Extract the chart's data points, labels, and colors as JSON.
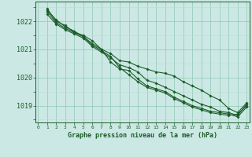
{
  "title": "Graphe pression niveau de la mer (hPa)",
  "bg_color": "#cce8e4",
  "line_color": "#1a5c28",
  "grid_color_major": "#99ccbb",
  "grid_color_minor": "#bbddd5",
  "ylim": [
    1018.4,
    1022.7
  ],
  "xlim": [
    -0.3,
    23.3
  ],
  "yticks": [
    1019,
    1020,
    1021,
    1022
  ],
  "xticks": [
    0,
    1,
    2,
    3,
    4,
    5,
    6,
    7,
    8,
    9,
    10,
    11,
    12,
    13,
    14,
    15,
    16,
    17,
    18,
    19,
    20,
    21,
    22,
    23
  ],
  "series": [
    [
      null,
      1022.45,
      1022.0,
      1021.85,
      1021.6,
      1021.5,
      1021.3,
      1021.0,
      1020.85,
      1020.6,
      1020.55,
      1020.4,
      1020.3,
      1020.2,
      1020.15,
      1020.05,
      1019.85,
      1019.7,
      1019.55,
      1019.35,
      1019.2,
      1018.9,
      1018.75,
      1019.1
    ],
    [
      null,
      1022.25,
      1021.9,
      1021.7,
      1021.55,
      1021.4,
      1021.1,
      1020.9,
      1020.7,
      1020.45,
      1020.35,
      1020.2,
      1019.9,
      1019.8,
      1019.65,
      1019.5,
      1019.35,
      1019.2,
      1019.05,
      1018.95,
      1018.8,
      1018.75,
      1018.65,
      1019.05
    ],
    [
      null,
      1022.35,
      1021.95,
      1021.75,
      1021.6,
      1021.45,
      1021.15,
      1020.95,
      1020.75,
      1020.35,
      1020.1,
      1019.85,
      1019.65,
      1019.55,
      1019.45,
      1019.25,
      1019.1,
      1018.95,
      1018.85,
      1018.75,
      1018.7,
      1018.65,
      1018.7,
      1019.0
    ],
    [
      null,
      1022.4,
      1022.05,
      1021.8,
      1021.65,
      1021.45,
      1021.2,
      1021.0,
      1020.55,
      1020.3,
      1020.25,
      1019.95,
      1019.7,
      1019.6,
      1019.5,
      1019.3,
      1019.15,
      1019.0,
      1018.9,
      1018.8,
      1018.75,
      1018.7,
      1018.6,
      1018.95
    ]
  ]
}
